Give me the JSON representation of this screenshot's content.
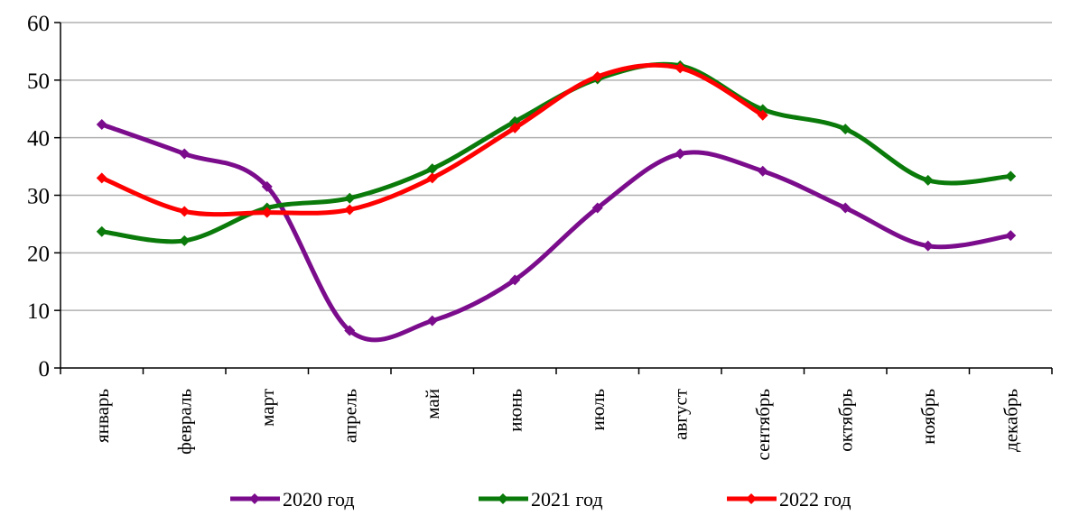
{
  "chart_data": {
    "type": "line",
    "categories": [
      "январь",
      "февраль",
      "март",
      "апрель",
      "май",
      "июнь",
      "июль",
      "август",
      "сентябрь",
      "октябрь",
      "ноябрь",
      "декабрь"
    ],
    "series": [
      {
        "name": "2020 год",
        "color": "#7b0d8c",
        "values": [
          42.3,
          37.2,
          31.5,
          6.5,
          8.2,
          15.3,
          27.8,
          37.2,
          34.2,
          27.8,
          21.2,
          23.0
        ]
      },
      {
        "name": "2021 год",
        "color": "#0a7a0a",
        "values": [
          23.7,
          22.1,
          27.8,
          29.5,
          34.6,
          42.8,
          50.2,
          52.5,
          44.9,
          41.5,
          32.6,
          33.3
        ]
      },
      {
        "name": "2022 год",
        "color": "#ff0000",
        "values": [
          33.0,
          27.2,
          27.0,
          27.5,
          33.0,
          41.7,
          50.6,
          52.1,
          43.9,
          null,
          null,
          null
        ]
      }
    ],
    "ylim": [
      0,
      60
    ],
    "yticks": [
      0,
      10,
      20,
      30,
      40,
      50,
      60
    ],
    "grid": true,
    "smooth": true,
    "legend": "bottom"
  }
}
